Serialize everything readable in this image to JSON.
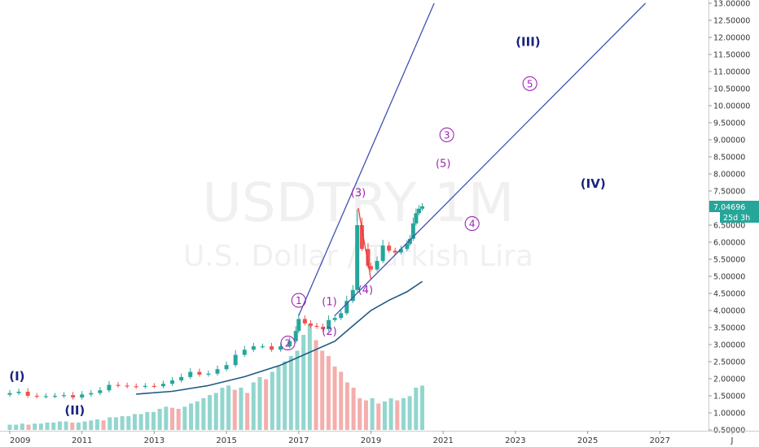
{
  "chart_data": {
    "type": "candlestick",
    "symbol": "USDTRY",
    "interval": "1M",
    "description": "U.S. Dollar / Turkish Lira",
    "y_axis": {
      "ticks": [
        "13.00000",
        "12.50000",
        "12.00000",
        "11.50000",
        "11.00000",
        "10.50000",
        "10.00000",
        "9.50000",
        "9.00000",
        "8.50000",
        "8.00000",
        "7.50000",
        "7.00000",
        "6.50000",
        "6.00000",
        "5.50000",
        "5.00000",
        "4.50000",
        "4.00000",
        "3.50000",
        "3.00000",
        "2.50000",
        "2.00000",
        "1.50000",
        "1.00000",
        "0.50000"
      ],
      "range": [
        0.5,
        13.0
      ]
    },
    "x_axis": {
      "ticks": [
        "2009",
        "2011",
        "2013",
        "2015",
        "2017",
        "2019",
        "2021",
        "2023",
        "2025",
        "2027",
        "J"
      ],
      "range": [
        2009.0,
        2029.0
      ]
    },
    "last_price": "7.04696",
    "countdown": "25d 3h",
    "colors": {
      "up": "#26a69a",
      "down": "#ef5350",
      "line": "#3f51b5",
      "ma": "#1f5a85",
      "label_purple": "#9c27b0",
      "label_navy": "#1a237e"
    },
    "monthly_close": [
      [
        2009.0,
        1.58
      ],
      [
        2009.25,
        1.62
      ],
      [
        2009.5,
        1.5
      ],
      [
        2009.75,
        1.48
      ],
      [
        2010.0,
        1.49
      ],
      [
        2010.25,
        1.5
      ],
      [
        2010.5,
        1.52
      ],
      [
        2010.75,
        1.45
      ],
      [
        2011.0,
        1.54
      ],
      [
        2011.25,
        1.58
      ],
      [
        2011.5,
        1.66
      ],
      [
        2011.75,
        1.82
      ],
      [
        2012.0,
        1.8
      ],
      [
        2012.25,
        1.78
      ],
      [
        2012.5,
        1.77
      ],
      [
        2012.75,
        1.79
      ],
      [
        2013.0,
        1.78
      ],
      [
        2013.25,
        1.85
      ],
      [
        2013.5,
        1.95
      ],
      [
        2013.75,
        2.05
      ],
      [
        2014.0,
        2.2
      ],
      [
        2014.25,
        2.12
      ],
      [
        2014.5,
        2.15
      ],
      [
        2014.75,
        2.28
      ],
      [
        2015.0,
        2.4
      ],
      [
        2015.25,
        2.7
      ],
      [
        2015.5,
        2.85
      ],
      [
        2015.75,
        2.95
      ],
      [
        2016.0,
        2.95
      ],
      [
        2016.25,
        2.85
      ],
      [
        2016.5,
        2.95
      ],
      [
        2016.75,
        3.1
      ],
      [
        2016.92,
        3.4
      ],
      [
        2017.0,
        3.75
      ],
      [
        2017.17,
        3.62
      ],
      [
        2017.33,
        3.55
      ],
      [
        2017.5,
        3.52
      ],
      [
        2017.67,
        3.45
      ],
      [
        2017.83,
        3.72
      ],
      [
        2018.0,
        3.78
      ],
      [
        2018.17,
        3.92
      ],
      [
        2018.33,
        4.28
      ],
      [
        2018.5,
        4.6
      ],
      [
        2018.62,
        6.5
      ],
      [
        2018.75,
        5.8
      ],
      [
        2018.92,
        5.3
      ],
      [
        2019.0,
        5.2
      ],
      [
        2019.17,
        5.45
      ],
      [
        2019.33,
        5.9
      ],
      [
        2019.5,
        5.75
      ],
      [
        2019.67,
        5.7
      ],
      [
        2019.83,
        5.8
      ],
      [
        2020.0,
        5.95
      ],
      [
        2020.08,
        6.1
      ],
      [
        2020.17,
        6.55
      ],
      [
        2020.25,
        6.85
      ],
      [
        2020.33,
        6.98
      ],
      [
        2020.42,
        7.05
      ]
    ],
    "moving_average": [
      [
        2012.5,
        1.55
      ],
      [
        2013.5,
        1.63
      ],
      [
        2014.5,
        1.8
      ],
      [
        2015.5,
        2.06
      ],
      [
        2016.5,
        2.4
      ],
      [
        2017.25,
        2.75
      ],
      [
        2018.0,
        3.1
      ],
      [
        2018.5,
        3.55
      ],
      [
        2019.0,
        4.0
      ],
      [
        2019.5,
        4.3
      ],
      [
        2020.0,
        4.55
      ],
      [
        2020.42,
        4.85
      ]
    ],
    "volume_relative": [
      0.05,
      0.05,
      0.06,
      0.05,
      0.06,
      0.06,
      0.07,
      0.07,
      0.08,
      0.08,
      0.07,
      0.07,
      0.08,
      0.09,
      0.1,
      0.09,
      0.12,
      0.12,
      0.13,
      0.13,
      0.15,
      0.15,
      0.17,
      0.17,
      0.2,
      0.22,
      0.21,
      0.2,
      0.22,
      0.25,
      0.27,
      0.3,
      0.33,
      0.35,
      0.4,
      0.42,
      0.38,
      0.4,
      0.35,
      0.45,
      0.5,
      0.48,
      0.55,
      0.6,
      0.65,
      0.7,
      0.75,
      0.9,
      1.0,
      0.85,
      0.75,
      0.7,
      0.6,
      0.55,
      0.45,
      0.4,
      0.3,
      0.28,
      0.3,
      0.25,
      0.27,
      0.3,
      0.28,
      0.3,
      0.32,
      0.4,
      0.42
    ],
    "trend_lines": [
      {
        "from": [
          2017.0,
          3.85
        ],
        "to": [
          2020.75,
          13.0
        ]
      },
      {
        "from": [
          2018.0,
          3.85
        ],
        "to": [
          2026.6,
          13.0
        ]
      },
      {
        "from": [
          2018.65,
          7.0
        ],
        "to": [
          2019.0,
          4.9
        ]
      }
    ],
    "wave_labels": [
      {
        "text": "(I)",
        "style": "big",
        "at": [
          2009.2,
          1.95
        ]
      },
      {
        "text": "(II)",
        "style": "big",
        "at": [
          2010.8,
          0.95
        ]
      },
      {
        "text": "(III)",
        "style": "big",
        "at": [
          2023.35,
          11.75
        ]
      },
      {
        "text": "(IV)",
        "style": "big",
        "at": [
          2025.15,
          7.6
        ]
      },
      {
        "text": "1",
        "style": "circle",
        "at": [
          2017.0,
          4.2
        ]
      },
      {
        "text": "2",
        "style": "circle",
        "at": [
          2016.7,
          2.95
        ]
      },
      {
        "text": "3",
        "style": "circle",
        "at": [
          2021.1,
          9.05
        ]
      },
      {
        "text": "4",
        "style": "circle",
        "at": [
          2021.8,
          6.45
        ]
      },
      {
        "text": "5",
        "style": "circle",
        "at": [
          2023.4,
          10.55
        ]
      },
      {
        "text": "(1)",
        "style": "mid",
        "at": [
          2017.85,
          4.15
        ]
      },
      {
        "text": "(2)",
        "style": "mid",
        "at": [
          2017.85,
          3.28
        ]
      },
      {
        "text": "(3)",
        "style": "mid",
        "at": [
          2018.65,
          7.35
        ]
      },
      {
        "text": "(4)",
        "style": "mid",
        "at": [
          2018.85,
          4.5
        ]
      },
      {
        "text": "(5)",
        "style": "mid",
        "at": [
          2021.0,
          8.2
        ]
      }
    ]
  }
}
